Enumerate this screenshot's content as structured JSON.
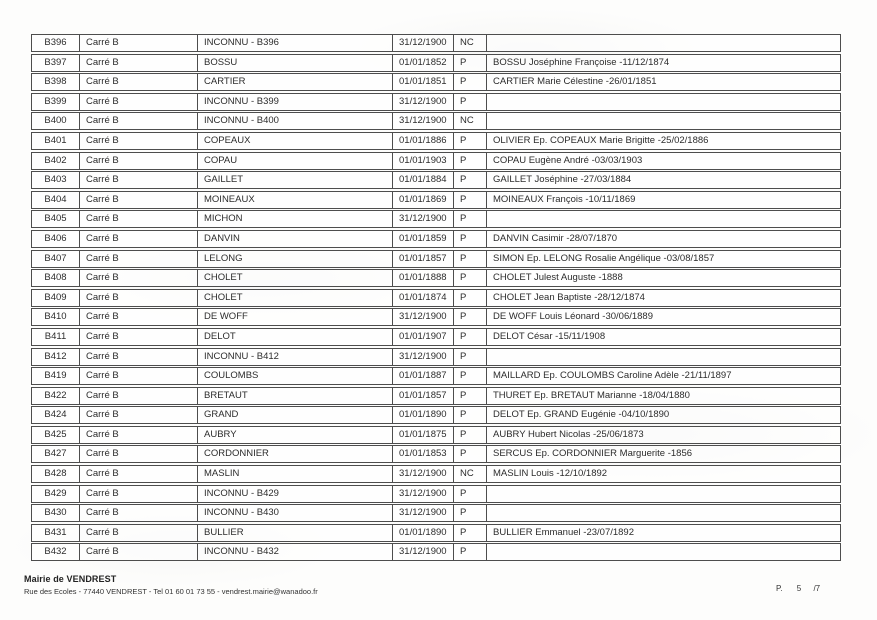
{
  "table": {
    "rows": [
      {
        "id": "B396",
        "section": "Carré B",
        "name": "INCONNU - B396",
        "date": "31/12/1900",
        "status": "NC",
        "details": ""
      },
      {
        "id": "B397",
        "section": "Carré B",
        "name": "BOSSU",
        "date": "01/01/1852",
        "status": "P",
        "details": "BOSSU Joséphine Françoise -11/12/1874"
      },
      {
        "id": "B398",
        "section": "Carré B",
        "name": "CARTIER",
        "date": "01/01/1851",
        "status": "P",
        "details": "CARTIER Marie Célestine -26/01/1851"
      },
      {
        "id": "B399",
        "section": "Carré B",
        "name": "INCONNU - B399",
        "date": "31/12/1900",
        "status": "P",
        "details": ""
      },
      {
        "id": "B400",
        "section": "Carré B",
        "name": "INCONNU - B400",
        "date": "31/12/1900",
        "status": "NC",
        "details": ""
      },
      {
        "id": "B401",
        "section": "Carré B",
        "name": "COPEAUX",
        "date": "01/01/1886",
        "status": "P",
        "details": "OLIVIER Ep. COPEAUX Marie Brigitte -25/02/1886"
      },
      {
        "id": "B402",
        "section": "Carré B",
        "name": "COPAU",
        "date": "01/01/1903",
        "status": "P",
        "details": "COPAU Eugène André -03/03/1903"
      },
      {
        "id": "B403",
        "section": "Carré B",
        "name": "GAILLET",
        "date": "01/01/1884",
        "status": "P",
        "details": "GAILLET Joséphine -27/03/1884"
      },
      {
        "id": "B404",
        "section": "Carré B",
        "name": "MOINEAUX",
        "date": "01/01/1869",
        "status": "P",
        "details": "MOINEAUX François -10/11/1869"
      },
      {
        "id": "B405",
        "section": "Carré B",
        "name": "MICHON",
        "date": "31/12/1900",
        "status": "P",
        "details": ""
      },
      {
        "id": "B406",
        "section": "Carré B",
        "name": "DANVIN",
        "date": "01/01/1859",
        "status": "P",
        "details": "DANVIN Casimir -28/07/1870"
      },
      {
        "id": "B407",
        "section": "Carré B",
        "name": "LELONG",
        "date": "01/01/1857",
        "status": "P",
        "details": "SIMON Ep. LELONG Rosalie Angélique -03/08/1857"
      },
      {
        "id": "B408",
        "section": "Carré B",
        "name": "CHOLET",
        "date": "01/01/1888",
        "status": "P",
        "details": "CHOLET Julest Auguste -1888"
      },
      {
        "id": "B409",
        "section": "Carré B",
        "name": "CHOLET",
        "date": "01/01/1874",
        "status": "P",
        "details": "CHOLET Jean Baptiste -28/12/1874"
      },
      {
        "id": "B410",
        "section": "Carré B",
        "name": "DE WOFF",
        "date": "31/12/1900",
        "status": "P",
        "details": "DE WOFF Louis Léonard -30/06/1889"
      },
      {
        "id": "B411",
        "section": "Carré B",
        "name": "DELOT",
        "date": "01/01/1907",
        "status": "P",
        "details": "DELOT César -15/11/1908"
      },
      {
        "id": "B412",
        "section": "Carré B",
        "name": "INCONNU - B412",
        "date": "31/12/1900",
        "status": "P",
        "details": ""
      },
      {
        "id": "B419",
        "section": "Carré B",
        "name": "COULOMBS",
        "date": "01/01/1887",
        "status": "P",
        "details": "MAILLARD Ep. COULOMBS Caroline Adèle -21/11/1897"
      },
      {
        "id": "B422",
        "section": "Carré B",
        "name": "BRETAUT",
        "date": "01/01/1857",
        "status": "P",
        "details": "THURET Ep. BRETAUT Marianne -18/04/1880"
      },
      {
        "id": "B424",
        "section": "Carré B",
        "name": "GRAND",
        "date": "01/01/1890",
        "status": "P",
        "details": "DELOT Ep. GRAND Eugénie -04/10/1890"
      },
      {
        "id": "B425",
        "section": "Carré B",
        "name": "AUBRY",
        "date": "01/01/1875",
        "status": "P",
        "details": "AUBRY Hubert Nicolas -25/06/1873"
      },
      {
        "id": "B427",
        "section": "Carré B",
        "name": "CORDONNIER",
        "date": "01/01/1853",
        "status": "P",
        "details": "SERCUS Ep. CORDONNIER Marguerite -1856"
      },
      {
        "id": "B428",
        "section": "Carré B",
        "name": "MASLIN",
        "date": "31/12/1900",
        "status": "NC",
        "details": "MASLIN Louis -12/10/1892"
      },
      {
        "id": "B429",
        "section": "Carré B",
        "name": "INCONNU - B429",
        "date": "31/12/1900",
        "status": "P",
        "details": ""
      },
      {
        "id": "B430",
        "section": "Carré B",
        "name": "INCONNU - B430",
        "date": "31/12/1900",
        "status": "P",
        "details": ""
      },
      {
        "id": "B431",
        "section": "Carré B",
        "name": "BULLIER",
        "date": "01/01/1890",
        "status": "P",
        "details": "BULLIER Emmanuel -23/07/1892"
      },
      {
        "id": "B432",
        "section": "Carré B",
        "name": "INCONNU - B432",
        "date": "31/12/1900",
        "status": "P",
        "details": ""
      }
    ]
  },
  "footer": {
    "org_name": "Mairie de VENDREST",
    "address_line": "Rue des Ecoles - 77440 VENDREST - Tel 01 60 01 73 55 - vendrest.mairie@wanadoo.fr",
    "page_label": "P.",
    "page_number": "5",
    "page_total": "/7"
  }
}
